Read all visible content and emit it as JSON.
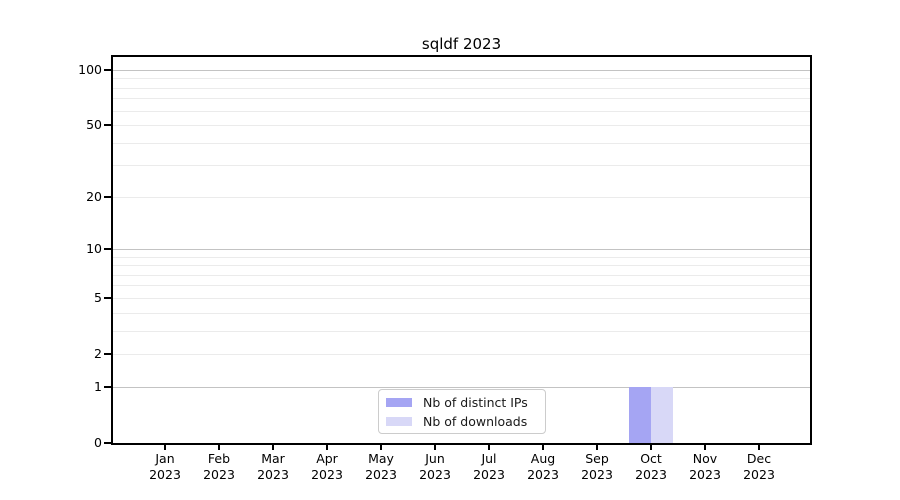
{
  "chart_data": {
    "type": "bar",
    "title": "sqldf 2023",
    "categories": [
      "Jan",
      "Feb",
      "Mar",
      "Apr",
      "May",
      "Jun",
      "Jul",
      "Aug",
      "Sep",
      "Oct",
      "Nov",
      "Dec"
    ],
    "x_tick_year": "2023",
    "series": [
      {
        "name": "Nb of distinct IPs",
        "color": "#a5a5f3",
        "values": [
          0,
          0,
          0,
          0,
          0,
          0,
          0,
          0,
          0,
          1,
          0,
          0
        ]
      },
      {
        "name": "Nb of downloads",
        "color": "#d8d8f7",
        "values": [
          0,
          0,
          0,
          0,
          0,
          0,
          0,
          0,
          0,
          1,
          0,
          0
        ]
      }
    ],
    "xlabel": "",
    "ylabel": "",
    "yscale": "log1p",
    "ylim": [
      0,
      118
    ],
    "y_ticks": [
      100,
      50,
      20,
      10,
      5,
      2,
      1,
      0
    ],
    "major_gridlines": [
      100,
      10,
      1
    ],
    "minor_gridlines": [
      90,
      80,
      70,
      60,
      50,
      40,
      30,
      20,
      9,
      8,
      7,
      6,
      5,
      4,
      3,
      2
    ],
    "grid": true,
    "legend_position": "bottom-center-inside",
    "colors": {
      "spine": "#000000",
      "major_grid": "#c3c3c3",
      "minor_grid": "#ebebeb",
      "legend_border": "#cccccc"
    }
  }
}
